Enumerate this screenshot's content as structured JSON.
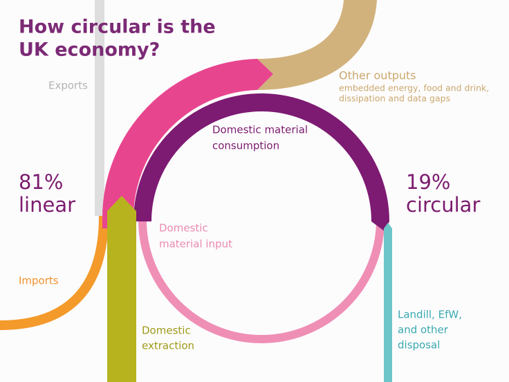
{
  "title": [
    "How circular is the",
    "UK economy?"
  ],
  "exports": "Exports",
  "other_outputs": {
    "label": "Other outputs",
    "detail": [
      "embedded energy, food and drink,",
      "dissipation and data gaps"
    ]
  },
  "domestic_material_consumption": [
    "Domestic material",
    "consumption"
  ],
  "domestic_material_input": [
    "Domestic",
    "material input"
  ],
  "linear": {
    "share": "81%",
    "label": "linear"
  },
  "circular": {
    "share": "19%",
    "label": "circular"
  },
  "imports": "Imports",
  "domestic_extraction": [
    "Domestic",
    "extraction"
  ],
  "disposal": [
    "Landill, EfW,",
    "and other",
    "disposal"
  ]
}
